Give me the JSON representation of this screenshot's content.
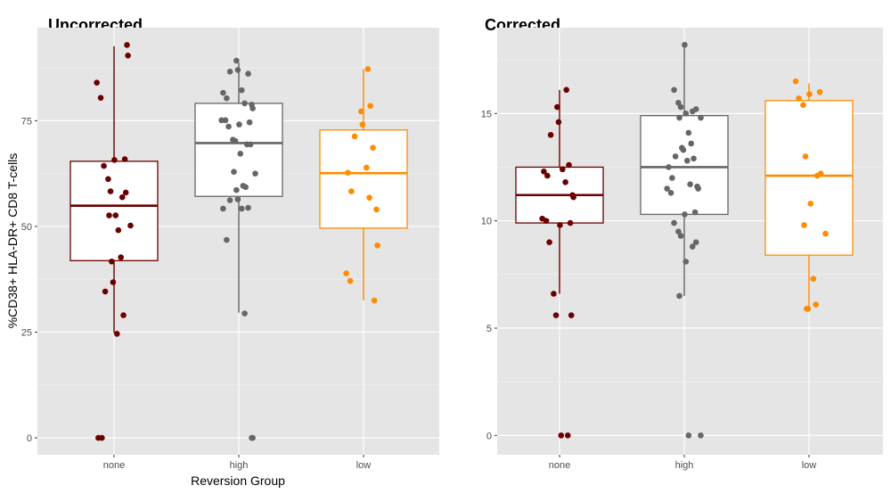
{
  "chart_data": [
    {
      "type": "boxplot",
      "title": "Uncorrected",
      "xlabel": "Reversion Group",
      "ylabel": "%CD38+ HLA-DR+ CD8 T-cells",
      "categories": [
        "none",
        "high",
        "low"
      ],
      "ylim": [
        -4,
        97
      ],
      "yticks": [
        0,
        25,
        50,
        75
      ],
      "ytick_labels": [
        "0",
        "25",
        "50",
        "75"
      ],
      "grid": true,
      "legend": "none",
      "colors": {
        "none": "#6b0000",
        "high": "#666666",
        "low": "#ff8c00"
      },
      "boxes": [
        {
          "category": "none",
          "q1": 41.9,
          "median": 54.9,
          "q3": 65.4,
          "whisker_low": 24.8,
          "whisker_high": 92.6
        },
        {
          "category": "high",
          "q1": 57.1,
          "median": 69.7,
          "q3": 79.1,
          "whisker_low": 29.6,
          "whisker_high": 88.7
        },
        {
          "category": "low",
          "q1": 49.6,
          "median": 62.6,
          "q3": 72.8,
          "whisker_low": 32.5,
          "whisker_high": 87.2
        }
      ],
      "points": [
        {
          "category": "none",
          "values": [
            0,
            0,
            24.6,
            29.0,
            34.6,
            36.8,
            41.7,
            42.7,
            49.1,
            50.2,
            52.6,
            52.6,
            56.9,
            58.0,
            58.3,
            61.2,
            64.3,
            65.7,
            65.9,
            80.4,
            84.0,
            90.4,
            92.9
          ]
        },
        {
          "category": "high",
          "values": [
            0,
            0,
            29.4,
            46.8,
            54.2,
            54.2,
            54.4,
            56.2,
            56.4,
            58.6,
            59.3,
            59.6,
            62.5,
            62.9,
            67.2,
            69.4,
            69.4,
            70.2,
            70.5,
            73.6,
            74.1,
            74.6,
            75.1,
            75.1,
            77.9,
            78.8,
            79.1,
            80.3,
            81.6,
            82.2,
            86.1,
            86.6,
            87.0,
            89.2
          ]
        },
        {
          "category": "low",
          "values": [
            32.5,
            37.1,
            38.9,
            45.5,
            54.0,
            56.8,
            58.3,
            62.7,
            63.9,
            68.6,
            71.3,
            74.1,
            77.2,
            78.5,
            87.2
          ]
        }
      ]
    },
    {
      "type": "boxplot",
      "title": "Corrected",
      "xlabel": "",
      "ylabel": "",
      "categories": [
        "none",
        "high",
        "low"
      ],
      "ylim": [
        -0.9,
        19.0
      ],
      "yticks": [
        0,
        5,
        10,
        15
      ],
      "ytick_labels": [
        "0",
        "5",
        "10",
        "15"
      ],
      "grid": true,
      "legend": "none",
      "colors": {
        "none": "#6b0000",
        "high": "#666666",
        "low": "#ff8c00"
      },
      "boxes": [
        {
          "category": "none",
          "q1": 9.9,
          "median": 11.2,
          "q3": 12.5,
          "whisker_low": 6.6,
          "whisker_high": 16.1
        },
        {
          "category": "high",
          "q1": 10.3,
          "median": 12.5,
          "q3": 14.9,
          "whisker_low": 6.5,
          "whisker_high": 18.2
        },
        {
          "category": "low",
          "q1": 8.4,
          "median": 12.1,
          "q3": 15.6,
          "whisker_low": 5.9,
          "whisker_high": 16.4
        }
      ],
      "points": [
        {
          "category": "none",
          "values": [
            0,
            0,
            5.6,
            5.6,
            6.6,
            9.0,
            9.8,
            9.9,
            10.0,
            10.1,
            11.1,
            11.2,
            11.8,
            12.1,
            12.3,
            12.4,
            12.6,
            14.0,
            14.6,
            15.3,
            16.1
          ]
        },
        {
          "category": "high",
          "values": [
            0,
            0,
            6.5,
            8.1,
            8.8,
            9.0,
            9.3,
            9.5,
            9.9,
            10.3,
            10.4,
            11.3,
            11.5,
            11.5,
            11.6,
            11.7,
            12.0,
            12.5,
            12.8,
            12.9,
            13.0,
            13.3,
            13.4,
            13.6,
            14.1,
            14.8,
            14.8,
            15.0,
            15.1,
            15.2,
            15.3,
            15.5,
            16.1,
            18.2
          ]
        },
        {
          "category": "low",
          "values": [
            5.9,
            5.9,
            6.1,
            7.3,
            9.4,
            9.8,
            10.8,
            12.1,
            12.2,
            13.0,
            15.4,
            15.7,
            15.9,
            16.0,
            16.5
          ]
        }
      ]
    }
  ]
}
